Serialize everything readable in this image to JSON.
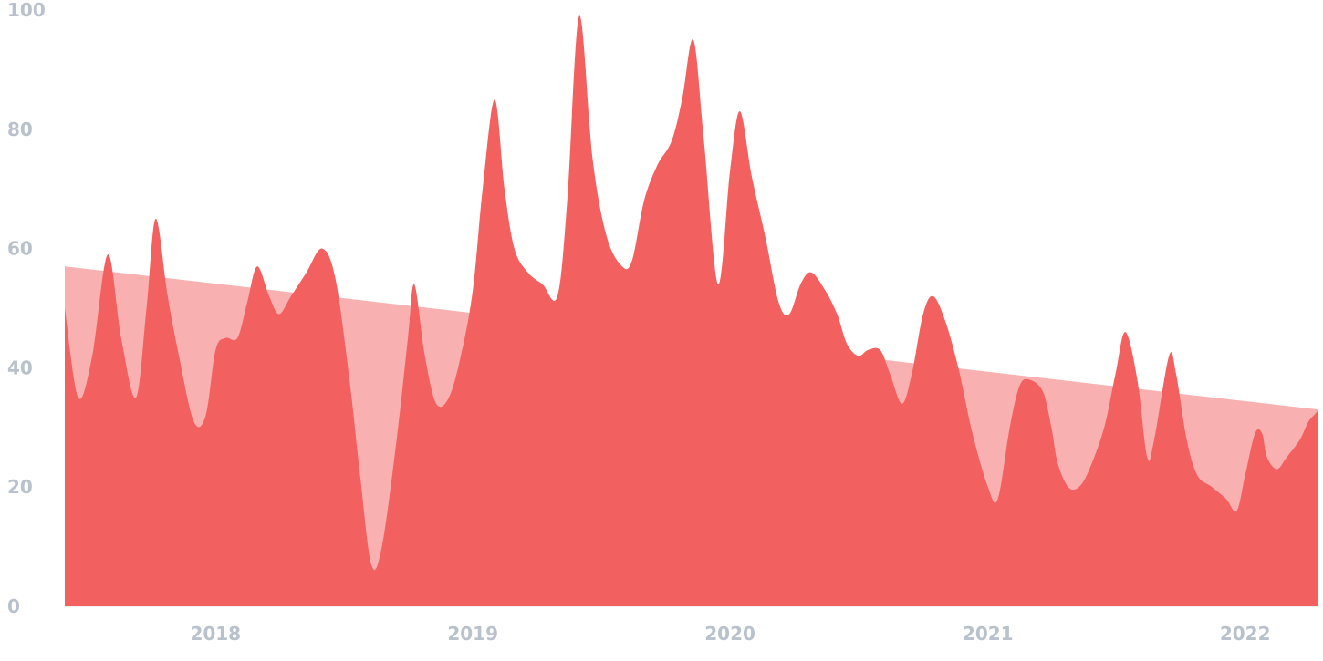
{
  "chart_data": {
    "type": "area",
    "title": "",
    "xlabel": "",
    "ylabel": "",
    "ylim": [
      0,
      100
    ],
    "xlim": [
      "2017-06-01",
      "2022-04-15"
    ],
    "grid": false,
    "legend": "none",
    "y_ticks": [
      0,
      20,
      40,
      60,
      80,
      100
    ],
    "x_ticks": [
      {
        "label": "2018",
        "date": "2018-01-01"
      },
      {
        "label": "2019",
        "date": "2019-01-01"
      },
      {
        "label": "2020",
        "date": "2020-01-01"
      },
      {
        "label": "2021",
        "date": "2021-01-01"
      },
      {
        "label": "2022",
        "date": "2022-01-01"
      }
    ],
    "series": [
      {
        "type": "area",
        "color": "#f26060",
        "points": [
          [
            "2017-06-01",
            50
          ],
          [
            "2017-06-20",
            35
          ],
          [
            "2017-07-10",
            42
          ],
          [
            "2017-08-01",
            59
          ],
          [
            "2017-08-20",
            45
          ],
          [
            "2017-09-10",
            35
          ],
          [
            "2017-09-25",
            50
          ],
          [
            "2017-10-08",
            65
          ],
          [
            "2017-10-25",
            52
          ],
          [
            "2017-11-10",
            42
          ],
          [
            "2017-12-01",
            31
          ],
          [
            "2017-12-18",
            32
          ],
          [
            "2018-01-01",
            43
          ],
          [
            "2018-01-15",
            45
          ],
          [
            "2018-02-01",
            45
          ],
          [
            "2018-02-15",
            51
          ],
          [
            "2018-03-01",
            57
          ],
          [
            "2018-03-18",
            52
          ],
          [
            "2018-04-01",
            49
          ],
          [
            "2018-04-18",
            52
          ],
          [
            "2018-05-10",
            56
          ],
          [
            "2018-06-01",
            60
          ],
          [
            "2018-06-20",
            55
          ],
          [
            "2018-07-10",
            38
          ],
          [
            "2018-07-25",
            22
          ],
          [
            "2018-08-10",
            7
          ],
          [
            "2018-08-25",
            10
          ],
          [
            "2018-09-15",
            28
          ],
          [
            "2018-10-01",
            45
          ],
          [
            "2018-10-10",
            54
          ],
          [
            "2018-10-25",
            42
          ],
          [
            "2018-11-10",
            34
          ],
          [
            "2018-11-28",
            35
          ],
          [
            "2018-12-15",
            42
          ],
          [
            "2019-01-01",
            53
          ],
          [
            "2019-01-15",
            70
          ],
          [
            "2019-02-01",
            85
          ],
          [
            "2019-02-15",
            70
          ],
          [
            "2019-03-01",
            60
          ],
          [
            "2019-03-20",
            56
          ],
          [
            "2019-04-10",
            54
          ],
          [
            "2019-05-01",
            52
          ],
          [
            "2019-05-15",
            68
          ],
          [
            "2019-06-01",
            99
          ],
          [
            "2019-06-20",
            75
          ],
          [
            "2019-07-10",
            62
          ],
          [
            "2019-08-01",
            57
          ],
          [
            "2019-08-15",
            58
          ],
          [
            "2019-09-01",
            68
          ],
          [
            "2019-09-20",
            74
          ],
          [
            "2019-10-10",
            78
          ],
          [
            "2019-10-25",
            85
          ],
          [
            "2019-11-10",
            95
          ],
          [
            "2019-11-25",
            78
          ],
          [
            "2019-12-15",
            54
          ],
          [
            "2020-01-01",
            73
          ],
          [
            "2020-01-15",
            83
          ],
          [
            "2020-02-01",
            72
          ],
          [
            "2020-02-20",
            62
          ],
          [
            "2020-03-10",
            51
          ],
          [
            "2020-03-25",
            49
          ],
          [
            "2020-04-10",
            54
          ],
          [
            "2020-04-25",
            56
          ],
          [
            "2020-05-15",
            53
          ],
          [
            "2020-06-01",
            49
          ],
          [
            "2020-06-15",
            44
          ],
          [
            "2020-07-01",
            42
          ],
          [
            "2020-07-15",
            43
          ],
          [
            "2020-08-01",
            43
          ],
          [
            "2020-08-15",
            39
          ],
          [
            "2020-09-01",
            34
          ],
          [
            "2020-09-15",
            39
          ],
          [
            "2020-10-01",
            49
          ],
          [
            "2020-10-15",
            52
          ],
          [
            "2020-11-01",
            48
          ],
          [
            "2020-11-20",
            40
          ],
          [
            "2020-12-10",
            29
          ],
          [
            "2021-01-01",
            20
          ],
          [
            "2021-01-15",
            18
          ],
          [
            "2021-02-01",
            30
          ],
          [
            "2021-02-15",
            37
          ],
          [
            "2021-03-01",
            38
          ],
          [
            "2021-03-20",
            36
          ],
          [
            "2021-04-01",
            30
          ],
          [
            "2021-04-10",
            24
          ],
          [
            "2021-04-25",
            20
          ],
          [
            "2021-05-10",
            20
          ],
          [
            "2021-05-25",
            23
          ],
          [
            "2021-06-15",
            30
          ],
          [
            "2021-07-01",
            39
          ],
          [
            "2021-07-15",
            46
          ],
          [
            "2021-08-01",
            38
          ],
          [
            "2021-08-15",
            25
          ],
          [
            "2021-08-25",
            28
          ],
          [
            "2021-09-15",
            42
          ],
          [
            "2021-09-25",
            39
          ],
          [
            "2021-10-10",
            28
          ],
          [
            "2021-10-25",
            22
          ],
          [
            "2021-11-15",
            20
          ],
          [
            "2021-12-05",
            18
          ],
          [
            "2021-12-20",
            16
          ],
          [
            "2022-01-01",
            22
          ],
          [
            "2022-01-15",
            29
          ],
          [
            "2022-01-25",
            29
          ],
          [
            "2022-02-01",
            25
          ],
          [
            "2022-02-15",
            23
          ],
          [
            "2022-03-01",
            25
          ],
          [
            "2022-03-20",
            28
          ],
          [
            "2022-04-01",
            31
          ],
          [
            "2022-04-15",
            33
          ],
          [
            "2022-05-01",
            37
          ]
        ]
      },
      {
        "type": "area",
        "color": "#f8b0b0",
        "points": [
          [
            "2017-06-01",
            57
          ],
          [
            "2022-04-15",
            33
          ]
        ]
      }
    ]
  }
}
